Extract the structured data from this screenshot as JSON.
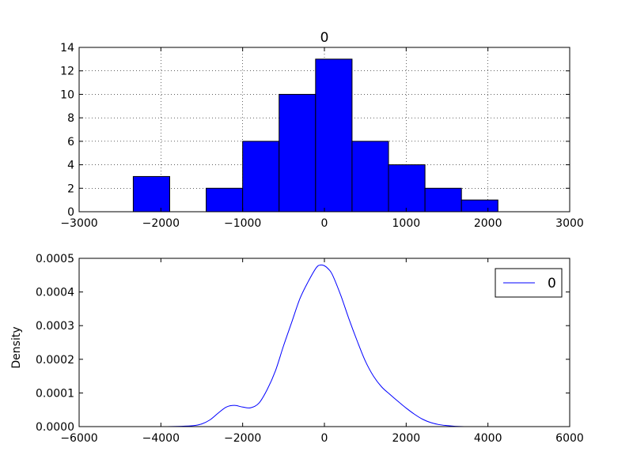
{
  "colors": {
    "bar_fill": "#0000ff",
    "line": "#0000ff",
    "grid": "#000000",
    "frame": "#000000",
    "background": "#ffffff"
  },
  "chart_data": [
    {
      "type": "bar",
      "title": "0",
      "xlabel": "",
      "ylabel": "",
      "bin_edges": [
        -2350,
        -1880,
        -1410,
        -940,
        -470,
        0,
        470,
        940,
        1410,
        1880,
        2350
      ],
      "bins": [
        {
          "x0": -2338,
          "x1": -1892,
          "count": 3
        },
        {
          "x0": -1892,
          "x1": -1446,
          "count": 0
        },
        {
          "x0": -1446,
          "x1": -1000,
          "count": 2
        },
        {
          "x0": -1000,
          "x1": -554,
          "count": 6
        },
        {
          "x0": -554,
          "x1": -108,
          "count": 10
        },
        {
          "x0": -108,
          "x1": 338,
          "count": 13
        },
        {
          "x0": 338,
          "x1": 784,
          "count": 6
        },
        {
          "x0": 784,
          "x1": 1230,
          "count": 4
        },
        {
          "x0": 1230,
          "x1": 1676,
          "count": 2
        },
        {
          "x0": 1676,
          "x1": 2122,
          "count": 1
        }
      ],
      "xlim": [
        -3000,
        3000
      ],
      "ylim": [
        0,
        14
      ],
      "xticks": [
        -3000,
        -2000,
        -1000,
        0,
        1000,
        2000,
        3000
      ],
      "xtick_labels": [
        "−3000",
        "−2000",
        "−1000",
        "0",
        "1000",
        "2000",
        "3000"
      ],
      "yticks": [
        0,
        2,
        4,
        6,
        8,
        10,
        12,
        14
      ],
      "ytick_labels": [
        "0",
        "2",
        "4",
        "6",
        "8",
        "10",
        "12",
        "14"
      ],
      "grid": true,
      "legend": false
    },
    {
      "type": "line",
      "title": "",
      "xlabel": "",
      "ylabel": "Density",
      "series": [
        {
          "name": "0",
          "x": [
            -4500,
            -4000,
            -3500,
            -3200,
            -3000,
            -2800,
            -2600,
            -2400,
            -2200,
            -2000,
            -1800,
            -1600,
            -1400,
            -1200,
            -1000,
            -800,
            -600,
            -400,
            -200,
            -100,
            0,
            100,
            200,
            400,
            600,
            800,
            1000,
            1200,
            1400,
            1600,
            1800,
            2000,
            2200,
            2400,
            2600,
            2800,
            3000,
            3200,
            3500,
            4000,
            4500
          ],
          "y": [
            0,
            0,
            1e-06,
            3e-06,
            8e-06,
            2e-05,
            4e-05,
            5.8e-05,
            6.3e-05,
            5.8e-05,
            5.6e-05,
            7e-05,
            0.00011,
            0.000165,
            0.00024,
            0.00031,
            0.00038,
            0.00043,
            0.000472,
            0.00048,
            0.000478,
            0.000468,
            0.00045,
            0.00039,
            0.00032,
            0.000255,
            0.000195,
            0.00015,
            0.000118,
            9.6e-05,
            7.5e-05,
            5.5e-05,
            3.7e-05,
            2.2e-05,
            1.2e-05,
            6e-06,
            3e-06,
            1e-06,
            0,
            0,
            0
          ]
        }
      ],
      "xlim": [
        -6000,
        6000
      ],
      "ylim": [
        0,
        0.0005
      ],
      "xticks": [
        -6000,
        -4000,
        -2000,
        0,
        2000,
        4000,
        6000
      ],
      "xtick_labels": [
        "−6000",
        "−4000",
        "−2000",
        "0",
        "2000",
        "4000",
        "6000"
      ],
      "yticks": [
        0,
        0.0001,
        0.0002,
        0.0003,
        0.0004,
        0.0005
      ],
      "ytick_labels": [
        "0.0000",
        "0.0001",
        "0.0002",
        "0.0003",
        "0.0004",
        "0.0005"
      ],
      "grid": false,
      "legend": true,
      "legend_placement": "upper right"
    }
  ]
}
